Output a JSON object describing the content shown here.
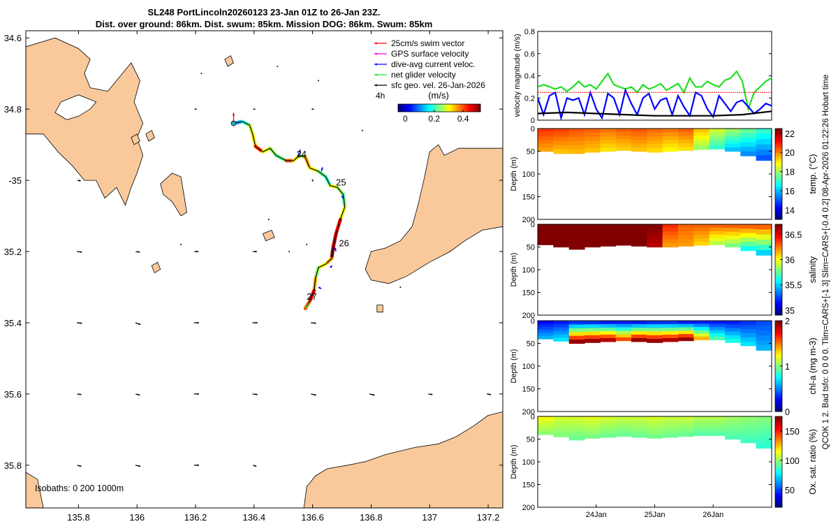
{
  "title": {
    "line1": "SL248 PortLincoln20260123 23-Jan 01Z to 26-Jan 23Z.",
    "line2": "Dist. over ground: 86km. Dist. swum: 85km. Mission DOG: 86km. Swum: 85km"
  },
  "side_note": "QCOK 1 2. Bad tsfo: 0 0 0 0. Tlim=CARS+[-1 3] Slim=CARS+[-0.4 0.2] 08-Apr-2026 01:22:26 Hobart time",
  "colors": {
    "land": "#f9c99b",
    "track_green": "#22dd22",
    "swim_vector": "#ff0000",
    "gps_velocity": "#ee00ee",
    "dive_avg": "#0000ff",
    "geo_vel": "#000000"
  },
  "chart_data": [
    {
      "type": "map",
      "name": "glider track map",
      "xlim": [
        135.62,
        137.25
      ],
      "ylim": [
        -35.92,
        -34.58
      ],
      "x_ticks": [
        135.8,
        136,
        136.2,
        136.4,
        136.6,
        136.8,
        137,
        137.2
      ],
      "x_tick_labels": [
        "135.8",
        "136",
        "136.2",
        "136.4",
        "136.6",
        "136.8",
        "137",
        "137.2"
      ],
      "y_ticks": [
        -34.6,
        -34.8,
        -35,
        -35.2,
        -35.4,
        -35.6,
        -35.8
      ],
      "y_tick_labels": [
        "34.6",
        "34.8",
        "-35",
        "35.2",
        "35.4",
        "35.6",
        "35.8"
      ],
      "legend": {
        "position": "top-right",
        "items": [
          {
            "label": "25cm/s swim vector",
            "color": "#ff0000"
          },
          {
            "label": "GPS surface velocity",
            "color": "#ee00ee"
          },
          {
            "label": "dive-avg current veloc.",
            "color": "#0000ff"
          },
          {
            "label": "net glider velocity",
            "color": "#22dd22"
          },
          {
            "label": "sfc geo. vel. 26-Jan-2026",
            "color": "#000000"
          }
        ],
        "interval": "4h"
      },
      "colorbar": {
        "label": "(m/s)",
        "ticks": [
          0,
          0.2,
          0.4
        ],
        "tick_labels": [
          "0",
          "0.2",
          "0.4"
        ],
        "range": [
          -0.05,
          0.52
        ]
      },
      "track": [
        [
          136.33,
          -34.84
        ],
        [
          136.36,
          -34.835
        ],
        [
          136.385,
          -34.845
        ],
        [
          136.395,
          -34.87
        ],
        [
          136.405,
          -34.905
        ],
        [
          136.43,
          -34.92
        ],
        [
          136.455,
          -34.91
        ],
        [
          136.475,
          -34.93
        ],
        [
          136.51,
          -34.945
        ],
        [
          136.535,
          -34.945
        ],
        [
          136.555,
          -34.93
        ],
        [
          136.575,
          -34.935
        ],
        [
          136.59,
          -34.965
        ],
        [
          136.62,
          -34.975
        ],
        [
          136.645,
          -34.99
        ],
        [
          136.66,
          -35.015
        ],
        [
          136.685,
          -35.02
        ],
        [
          136.705,
          -35.04
        ],
        [
          136.71,
          -35.075
        ],
        [
          136.695,
          -35.11
        ],
        [
          136.68,
          -35.15
        ],
        [
          136.67,
          -35.19
        ],
        [
          136.665,
          -35.22
        ],
        [
          136.645,
          -35.235
        ],
        [
          136.62,
          -35.245
        ],
        [
          136.61,
          -35.275
        ],
        [
          136.605,
          -35.31
        ],
        [
          136.59,
          -35.34
        ],
        [
          136.575,
          -35.36
        ]
      ],
      "track_speed": [
        0.12,
        0.2,
        0.28,
        0.32,
        0.42,
        0.3,
        0.25,
        0.22,
        0.4,
        0.3,
        0.25,
        0.35,
        0.3,
        0.22,
        0.2,
        0.3,
        0.25,
        0.22,
        0.3,
        0.45,
        0.48,
        0.5,
        0.35,
        0.3,
        0.25,
        0.35,
        0.45,
        0.4,
        0.15
      ],
      "day_labels": [
        {
          "text": "24",
          "lon": 136.545,
          "lat": -34.935
        },
        {
          "text": "25",
          "lon": 136.68,
          "lat": -35.015
        },
        {
          "text": "26",
          "lon": 136.69,
          "lat": -35.185
        },
        {
          "text": "27",
          "lon": 136.58,
          "lat": -35.335
        }
      ],
      "vectors": [
        {
          "lon": 136.33,
          "lat": -34.84,
          "u": 0.0,
          "v": 0.25,
          "color": "#ff0000"
        },
        {
          "lon": 136.55,
          "lat": -34.93,
          "u": 0.06,
          "v": 0.14,
          "color": "#0000ff"
        },
        {
          "lon": 136.63,
          "lat": -34.975,
          "u": 0.03,
          "v": 0.1,
          "color": "#0000ff"
        },
        {
          "lon": 136.705,
          "lat": -35.05,
          "u": -0.04,
          "v": 0.06,
          "color": "#0000ff"
        },
        {
          "lon": 136.68,
          "lat": -35.2,
          "u": -0.03,
          "v": 0.1,
          "color": "#0000ff"
        },
        {
          "lon": 136.66,
          "lat": -35.245,
          "u": 0.05,
          "v": 0.05,
          "color": "#0000ff"
        },
        {
          "lon": 136.62,
          "lat": -35.3,
          "u": 0.07,
          "v": -0.04,
          "color": "#0000ff"
        }
      ],
      "geo_vectors": [
        {
          "lon": 135.8,
          "lat": -35.2,
          "u": 0.06,
          "v": -0.01
        },
        {
          "lon": 136.0,
          "lat": -35.2,
          "u": 0.05,
          "v": -0.01
        },
        {
          "lon": 136.2,
          "lat": -35.2,
          "u": 0.05,
          "v": 0.0
        },
        {
          "lon": 136.4,
          "lat": -35.2,
          "u": 0.05,
          "v": 0.0
        },
        {
          "lon": 135.8,
          "lat": -35.4,
          "u": 0.06,
          "v": -0.01
        },
        {
          "lon": 136.0,
          "lat": -35.4,
          "u": 0.06,
          "v": -0.03
        },
        {
          "lon": 136.2,
          "lat": -35.4,
          "u": 0.06,
          "v": 0.0
        },
        {
          "lon": 136.4,
          "lat": -35.4,
          "u": 0.06,
          "v": 0.0
        },
        {
          "lon": 136.6,
          "lat": -35.4,
          "u": 0.06,
          "v": -0.01
        },
        {
          "lon": 135.8,
          "lat": -35.6,
          "u": 0.05,
          "v": -0.01
        },
        {
          "lon": 136.0,
          "lat": -35.6,
          "u": 0.05,
          "v": -0.02
        },
        {
          "lon": 136.2,
          "lat": -35.6,
          "u": 0.06,
          "v": 0.0
        },
        {
          "lon": 136.4,
          "lat": -35.6,
          "u": 0.06,
          "v": -0.01
        },
        {
          "lon": 136.6,
          "lat": -35.6,
          "u": 0.06,
          "v": -0.02
        },
        {
          "lon": 136.8,
          "lat": -35.6,
          "u": 0.06,
          "v": -0.02
        },
        {
          "lon": 137.0,
          "lat": -35.6,
          "u": 0.05,
          "v": -0.01
        },
        {
          "lon": 137.2,
          "lat": -35.6,
          "u": 0.05,
          "v": -0.01
        },
        {
          "lon": 135.8,
          "lat": -35.8,
          "u": 0.05,
          "v": -0.02
        },
        {
          "lon": 136.0,
          "lat": -35.8,
          "u": 0.06,
          "v": -0.02
        },
        {
          "lon": 136.2,
          "lat": -35.8,
          "u": 0.06,
          "v": 0.0
        },
        {
          "lon": 136.4,
          "lat": -35.8,
          "u": 0.04,
          "v": -0.02
        },
        {
          "lon": 135.8,
          "lat": -35.0,
          "u": 0.04,
          "v": -0.01
        },
        {
          "lon": 136.6,
          "lat": -35.0,
          "u": 0.0,
          "v": -0.02
        },
        {
          "lon": 136.8,
          "lat": -34.8,
          "u": 0.02,
          "v": 0.0
        },
        {
          "lon": 137.0,
          "lat": -34.8,
          "u": 0.02,
          "v": 0.0
        },
        {
          "lon": 137.2,
          "lat": -34.8,
          "u": 0.02,
          "v": 0.0
        },
        {
          "lon": 136.2,
          "lat": -34.8,
          "u": 0.02,
          "v": 0.0
        },
        {
          "lon": 136.4,
          "lat": -34.8,
          "u": 0.02,
          "v": 0.0
        },
        {
          "lon": 136.6,
          "lat": -34.8,
          "u": 0.02,
          "v": 0.0
        }
      ],
      "isobaths_label": "Isobaths: 0   200  1000m"
    },
    {
      "type": "line",
      "name": "velocity magnitude",
      "ylabel": "velocity magnitude (m/s)",
      "ylim": [
        0,
        0.8
      ],
      "y_ticks": [
        0,
        0.2,
        0.4,
        0.6,
        0.8
      ],
      "y_tick_labels": [
        "0",
        "0.2",
        "0.4",
        "0.6",
        "0.8"
      ],
      "xlim": [
        0,
        4
      ],
      "series": [
        {
          "name": "net glider velocity",
          "color": "#22dd22",
          "x": [
            0,
            0.1,
            0.2,
            0.3,
            0.4,
            0.5,
            0.6,
            0.7,
            0.8,
            0.9,
            1.0,
            1.1,
            1.2,
            1.3,
            1.4,
            1.5,
            1.6,
            1.7,
            1.8,
            1.9,
            2.0,
            2.1,
            2.2,
            2.3,
            2.4,
            2.5,
            2.6,
            2.7,
            2.8,
            2.9,
            3.0,
            3.1,
            3.2,
            3.3,
            3.4,
            3.5,
            3.6,
            3.7,
            3.8,
            3.9,
            4.0
          ],
          "values": [
            0.3,
            0.32,
            0.3,
            0.28,
            0.3,
            0.26,
            0.3,
            0.35,
            0.3,
            0.32,
            0.28,
            0.35,
            0.42,
            0.32,
            0.3,
            0.28,
            0.3,
            0.25,
            0.32,
            0.28,
            0.3,
            0.33,
            0.27,
            0.3,
            0.33,
            0.25,
            0.38,
            0.3,
            0.3,
            0.35,
            0.32,
            0.3,
            0.36,
            0.38,
            0.44,
            0.35,
            0.1,
            0.25,
            0.3,
            0.35,
            0.38
          ]
        },
        {
          "name": "dive-avg current",
          "color": "#0000ff",
          "x": [
            0,
            0.1,
            0.2,
            0.3,
            0.4,
            0.5,
            0.6,
            0.7,
            0.8,
            0.9,
            1.0,
            1.1,
            1.2,
            1.3,
            1.4,
            1.5,
            1.6,
            1.7,
            1.8,
            1.9,
            2.0,
            2.1,
            2.2,
            2.3,
            2.4,
            2.5,
            2.6,
            2.7,
            2.8,
            2.9,
            3.0,
            3.1,
            3.2,
            3.3,
            3.4,
            3.5,
            3.6,
            3.7,
            3.8,
            3.9,
            4.0
          ],
          "values": [
            0.2,
            0.05,
            0.22,
            0.25,
            0.02,
            0.2,
            0.18,
            0.2,
            0.05,
            0.25,
            0.1,
            0.02,
            0.24,
            0.2,
            0.05,
            0.27,
            0.15,
            0.05,
            0.2,
            0.24,
            0.1,
            0.18,
            0.2,
            0.05,
            0.22,
            0.12,
            0.04,
            0.25,
            0.22,
            0.1,
            0.03,
            0.22,
            0.15,
            0.08,
            0.16,
            0.18,
            0.12,
            0.06,
            0.1,
            0.15,
            0.13
          ]
        },
        {
          "name": "25cm/s swim",
          "color": "#ff0000",
          "x": [
            0,
            4
          ],
          "values": [
            0.25,
            0.25
          ]
        },
        {
          "name": "sfc geo. vel.",
          "color": "#000000",
          "x": [
            0,
            0.5,
            1.0,
            1.5,
            2.0,
            2.5,
            3.0,
            3.5,
            4.0
          ],
          "values": [
            0.06,
            0.07,
            0.06,
            0.05,
            0.04,
            0.04,
            0.04,
            0.05,
            0.08
          ]
        }
      ]
    },
    {
      "type": "heatmap",
      "name": "temperature section",
      "ylabel": "Depth (m)",
      "ylim": [
        0,
        200
      ],
      "y_ticks": [
        0,
        50,
        100,
        150,
        200
      ],
      "colorbar": {
        "label": "temp. (°C)",
        "ticks": [
          14,
          16,
          18,
          20,
          22
        ],
        "tick_labels": [
          "14",
          "16",
          "18",
          "20",
          "22"
        ],
        "range": [
          13,
          22.5
        ]
      },
      "depth_max": [
        50,
        55,
        55,
        52,
        50,
        48,
        50,
        52,
        50,
        48,
        46,
        45,
        50,
        60,
        70
      ],
      "surface_values": [
        20.8,
        20.7,
        20.5,
        20.4,
        20.2,
        20.4,
        20.5,
        20.3,
        20.2,
        20.4,
        19.5,
        18.5,
        18.0,
        17.5,
        17.0
      ],
      "deep_values": [
        19.8,
        19.5,
        19.6,
        19.5,
        19.2,
        19.4,
        19.5,
        19.3,
        19.0,
        19.2,
        18.0,
        17.0,
        16.0,
        15.5,
        15.0
      ]
    },
    {
      "type": "heatmap",
      "name": "salinity section",
      "ylabel": "Depth (m)",
      "ylim": [
        0,
        200
      ],
      "y_ticks": [
        0,
        50,
        100,
        150,
        200
      ],
      "colorbar": {
        "label": "salinity",
        "ticks": [
          35,
          35.5,
          36,
          36.5
        ],
        "tick_labels": [
          "35",
          "35.5",
          "36",
          "36.5"
        ],
        "range": [
          34.9,
          36.7
        ]
      },
      "depth_max": [
        45,
        50,
        55,
        50,
        48,
        46,
        48,
        50,
        50,
        48,
        46,
        45,
        50,
        58,
        68
      ],
      "surface_values": [
        36.7,
        36.7,
        36.7,
        36.7,
        36.7,
        36.7,
        36.7,
        36.7,
        36.4,
        36.3,
        36.3,
        36.3,
        36.3,
        36.3,
        36.3
      ],
      "deep_values": [
        36.7,
        36.7,
        36.7,
        36.7,
        36.7,
        36.7,
        36.7,
        36.6,
        36.2,
        36.2,
        36.1,
        35.9,
        35.8,
        35.6,
        35.5
      ]
    },
    {
      "type": "heatmap",
      "name": "chlorophyll section",
      "ylabel": "Depth (m)",
      "ylim": [
        0,
        200
      ],
      "y_ticks": [
        0,
        50,
        100,
        150,
        200
      ],
      "colorbar": {
        "label": "chl-a  (mg m-3)",
        "ticks": [
          0,
          1,
          2
        ],
        "tick_labels": [
          "0",
          "1",
          "2"
        ],
        "range": [
          0,
          2
        ]
      },
      "depth_max": [
        40,
        45,
        50,
        48,
        46,
        44,
        46,
        48,
        46,
        44,
        42,
        42,
        48,
        55,
        65
      ],
      "surface_values": [
        0.25,
        0.3,
        0.35,
        0.35,
        0.3,
        0.3,
        0.3,
        0.35,
        0.35,
        0.3,
        0.3,
        0.3,
        0.3,
        0.35,
        0.4
      ],
      "deep_values": [
        0.6,
        0.7,
        1.95,
        1.95,
        1.9,
        1.6,
        1.95,
        1.95,
        1.9,
        1.95,
        1.4,
        0.9,
        0.8,
        0.7,
        0.6
      ]
    },
    {
      "type": "heatmap",
      "name": "oxygen section",
      "ylabel": "Depth (m)",
      "ylim": [
        0,
        200
      ],
      "y_ticks": [
        0,
        50,
        100,
        150,
        200
      ],
      "x_ticks": [
        1.0,
        2.0,
        3.0
      ],
      "x_tick_labels": [
        "24Jan",
        "25Jan",
        "26Jan"
      ],
      "colorbar": {
        "label": "Ox. sat. ratio (%)",
        "ticks": [
          50,
          100,
          150
        ],
        "tick_labels": [
          "50",
          "100",
          "150"
        ],
        "range": [
          20,
          175
        ]
      },
      "depth_max": [
        40,
        45,
        52,
        48,
        46,
        44,
        46,
        48,
        46,
        44,
        42,
        42,
        50,
        58,
        70
      ],
      "surface_values": [
        115,
        110,
        110,
        112,
        110,
        108,
        108,
        110,
        108,
        108,
        105,
        105,
        102,
        100,
        98
      ],
      "deep_values": [
        100,
        98,
        95,
        97,
        95,
        94,
        95,
        96,
        95,
        94,
        92,
        92,
        90,
        88,
        85
      ]
    }
  ]
}
